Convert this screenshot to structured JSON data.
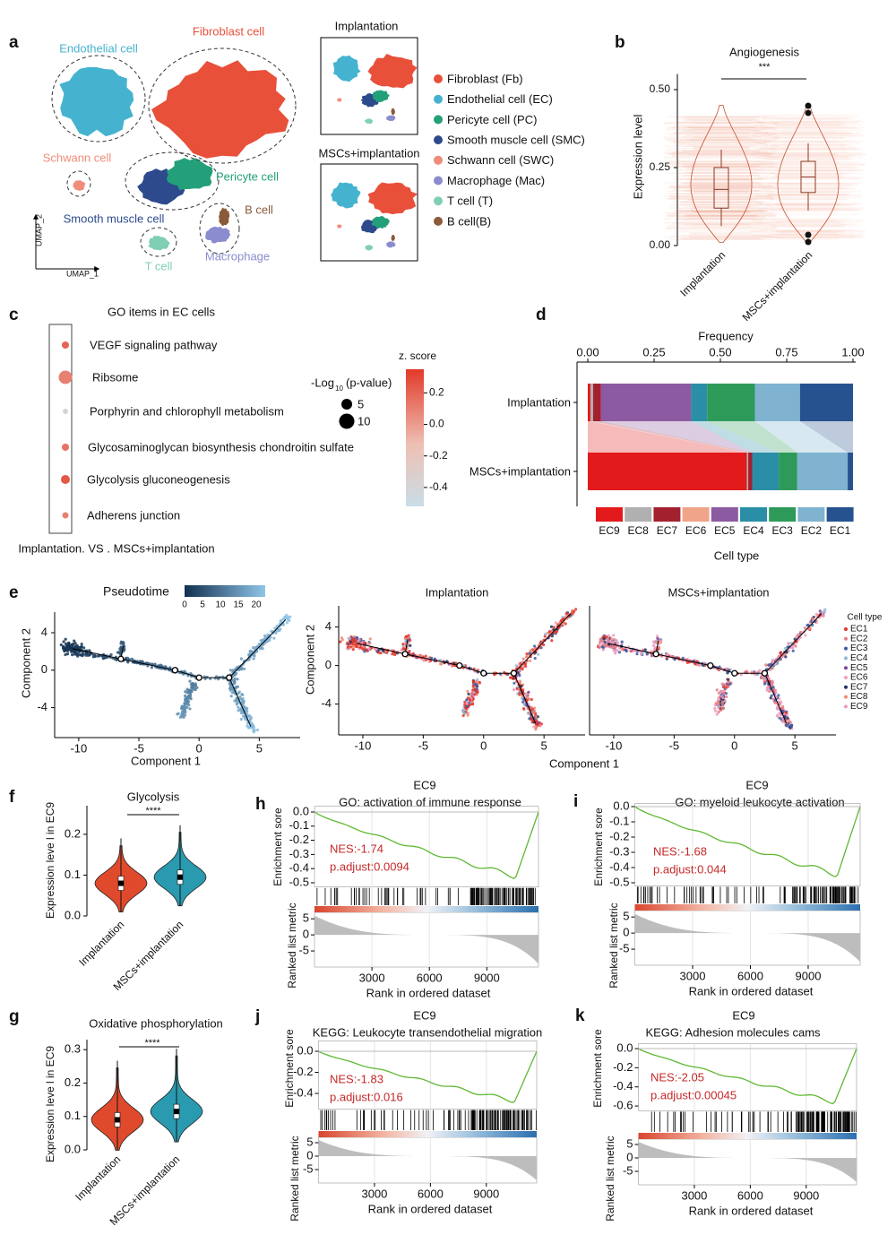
{
  "a": {
    "letter": "a",
    "clusters": [
      {
        "name": "Fibroblast cell",
        "color": "#e8503a"
      },
      {
        "name": "Endothelial cell",
        "color": "#45b3cf"
      },
      {
        "name": "Schwann cell",
        "color": "#ef8c7a"
      },
      {
        "name": "Pericyte cell",
        "color": "#23a07a"
      },
      {
        "name": "Smooth muscle cell",
        "color": "#2d4a8c"
      },
      {
        "name": "T cell",
        "color": "#7fcfb4"
      },
      {
        "name": "Macrophage",
        "color": "#8a8ccf"
      },
      {
        "name": "B cell",
        "color": "#8a5a3a"
      }
    ],
    "x_axis": "UMAP_1",
    "y_axis": "UMAP_2",
    "inset_titles": [
      "Implantation",
      "MSCs+implantation"
    ],
    "legend": [
      {
        "label": "Fibroblast  (Fb)",
        "color": "#e8503a"
      },
      {
        "label": "Endothelial cell (EC)",
        "color": "#45b3cf"
      },
      {
        "label": "Pericyte cell (PC)",
        "color": "#23a07a"
      },
      {
        "label": "Smooth muscle cell (SMC)",
        "color": "#2d4a8c"
      },
      {
        "label": "Schwann cell (SWC)",
        "color": "#ef8c7a"
      },
      {
        "label": "Macrophage (Mac)",
        "color": "#8a8ccf"
      },
      {
        "label": "T cell (T)",
        "color": "#7fcfb4"
      },
      {
        "label": "B cell(B)",
        "color": "#8a5a3a"
      }
    ]
  },
  "b": {
    "letter": "b",
    "title": "Angiogenesis",
    "significance": "***",
    "y_label": "Expression level",
    "categories": [
      "Implantation",
      "MSCs+implantation"
    ],
    "colors": [
      "#e8603a",
      "#f3a184"
    ],
    "ylim": [
      0,
      0.55
    ],
    "yticks": [
      {
        "value": 0,
        "label": "0.00"
      },
      {
        "value": 0.25,
        "label": "0.25"
      },
      {
        "value": 0.5,
        "label": "0.50"
      }
    ],
    "boxes": [
      {
        "q1": 0.12,
        "median": 0.18,
        "q3": 0.25
      },
      {
        "q1": 0.17,
        "median": 0.22,
        "q3": 0.27
      }
    ]
  },
  "c": {
    "letter": "c",
    "title": "GO items in EC cells",
    "items": [
      {
        "label": "VEGF signaling pathway",
        "neg_log10_p": 2.2,
        "z": 0.2
      },
      {
        "label": "Ribsome",
        "neg_log10_p": 7.7,
        "z": 0.1
      },
      {
        "label": "Porphyrin and chlorophyll metabolism",
        "neg_log10_p": 1.2,
        "z": -0.4
      },
      {
        "label": "Glycosaminoglycan biosynthesis chondroitin sulfate",
        "neg_log10_p": 2.2,
        "z": 0.15
      },
      {
        "label": "Glycolysis gluconeogenesis",
        "neg_log10_p": 3.4,
        "z": 0.25
      },
      {
        "label": "Adherens junction",
        "neg_log10_p": 1.7,
        "z": 0.1
      }
    ],
    "size_title": {
      "main": "-Log",
      "sub": "10",
      "tail": "(p-value)"
    },
    "size_legend": [
      5,
      10
    ],
    "color_title": "z. score",
    "clim": [
      -0.52,
      0.35
    ],
    "cticks": [
      0.2,
      {
        "value": 0,
        "label": "0.0"
      },
      -0.2,
      -0.4
    ],
    "footer": "Implantation. VS . MSCs+implantation"
  },
  "d": {
    "letter": "d",
    "x_label": "Frequency",
    "xlim": [
      0,
      1
    ],
    "xticks": [
      {
        "value": 0,
        "label": "0.00"
      },
      {
        "value": 0.25,
        "label": "0.25"
      },
      {
        "value": 0.5,
        "label": "0.50"
      },
      {
        "value": 0.75,
        "label": "0.75"
      },
      {
        "value": 1,
        "label": "1.00"
      }
    ],
    "rows": [
      "Implantation",
      "MSCs+implantation"
    ],
    "legend_title": "Cell type",
    "series": [
      {
        "name": "EC9",
        "color": "#e31a1c",
        "values": [
          0.01,
          0.6
        ]
      },
      {
        "name": "EC8",
        "color": "#b0b0b0",
        "values": [
          0.01,
          0.005
        ]
      },
      {
        "name": "EC7",
        "color": "#a3212f",
        "values": [
          0.03,
          0.015
        ]
      },
      {
        "name": "EC6",
        "color": "#f0a48a",
        "values": [
          0,
          0
        ]
      },
      {
        "name": "EC5",
        "color": "#8c5aa0",
        "values": [
          0.34,
          0
        ]
      },
      {
        "name": "EC4",
        "color": "#2a8fa6",
        "values": [
          0.06,
          0.1
        ]
      },
      {
        "name": "EC3",
        "color": "#2e9a5a",
        "values": [
          0.18,
          0.07
        ]
      },
      {
        "name": "EC2",
        "color": "#7fb3cf",
        "values": [
          0.17,
          0.19
        ]
      },
      {
        "name": "EC1",
        "color": "#26538f",
        "values": [
          0.2,
          0.02
        ]
      }
    ]
  },
  "e": {
    "letter": "e",
    "colorbar_title": "Pseudotime",
    "colorbar_ticks": [
      0,
      5,
      10,
      15,
      20
    ],
    "clim": [
      0,
      22.5
    ],
    "x_label": "Component 1",
    "y_label": "Component 2",
    "xlim": [
      -12,
      8.4
    ],
    "ylim": [
      -7.2,
      6.2
    ],
    "xticks": [
      -10,
      -5,
      0,
      5
    ],
    "yticks": [
      4,
      0,
      -4
    ],
    "titles": [
      "Implantation",
      "MSCs+implantation"
    ],
    "legend_title": "Cell type",
    "legend": [
      "EC1",
      "EC2",
      "EC3",
      "EC4",
      "EC5",
      "EC6",
      "EC7",
      "EC8",
      "EC9"
    ],
    "legend_colors": [
      "#e0362c",
      "#e87a8a",
      "#3a5ea8",
      "#8fb8d8",
      "#7b4a9a",
      "#f0a0b4",
      "#24325e",
      "#f08c74",
      "#e89ac0"
    ]
  },
  "f": {
    "letter": "f",
    "title": "Glycolysis",
    "significance": "****",
    "y_label": "Expression leve l in EC9",
    "categories": [
      "Implantation",
      "MSCs+implantation"
    ],
    "colors": [
      "#e04a2c",
      "#2a9ab0"
    ],
    "ylim": [
      0,
      0.27
    ],
    "yticks": [
      {
        "value": 0,
        "label": "0.0"
      },
      0.1,
      0.2
    ],
    "medians": [
      0.08,
      0.095
    ]
  },
  "g": {
    "letter": "g",
    "title": "Oxidative phosphorylation",
    "significance": "****",
    "y_label": "Expression leve l in EC9",
    "categories": [
      "Implantation",
      "MSCs+implantation"
    ],
    "colors": [
      "#e04a2c",
      "#2a9ab0"
    ],
    "ylim": [
      0,
      0.33
    ],
    "yticks": [
      {
        "value": 0,
        "label": "0.0"
      },
      0.1,
      0.2,
      0.3
    ],
    "medians": [
      0.09,
      0.115
    ]
  },
  "h": {
    "letter": "h",
    "cluster": "EC9",
    "title": "GO: activation of immune response",
    "nes": "NES:-1.74",
    "padj": "p.adjust:0.0094",
    "es_label": "Enrichment sore",
    "es_lim": [
      -0.53,
      0.04
    ],
    "es_ticks": [
      {
        "value": 0,
        "label": "0.0"
      },
      -0.1,
      -0.2,
      -0.3,
      -0.4,
      -0.5
    ],
    "metric_label": "Ranked list metric",
    "metric_lim": [
      -10,
      7
    ],
    "metric_ticks": [
      5,
      0,
      -5
    ],
    "x_label": "Rank in ordered dataset",
    "xlim": [
      0,
      11700
    ],
    "xticks": [
      3000,
      6000,
      9000
    ]
  },
  "i": {
    "letter": "i",
    "cluster": "EC9",
    "title": "GO: myeloid leukocyte activation",
    "nes": "NES:-1.68",
    "padj": "p.adjust:0.044",
    "es_label": "Enrichment sore",
    "es_lim": [
      -0.52,
      0.02
    ],
    "es_ticks": [
      {
        "value": 0,
        "label": "0.0"
      },
      -0.1,
      -0.2,
      -0.3,
      -0.4,
      -0.5
    ],
    "metric_label": "Ranked list metric",
    "metric_lim": [
      -10,
      7
    ],
    "metric_ticks": [
      5,
      0,
      -5
    ],
    "x_label": "Rank in ordered dataset",
    "xlim": [
      0,
      11700
    ],
    "xticks": [
      3000,
      6000,
      9000
    ]
  },
  "j": {
    "letter": "j",
    "cluster": "EC9",
    "title": "KEGG: Leukocyte transendothelial migration",
    "nes": "NES:-1.83",
    "padj": "p.adjust:0.016",
    "es_label": "Enrichment sore",
    "es_lim": [
      -0.55,
      0.1
    ],
    "es_ticks": [
      {
        "value": 0,
        "label": "0.0"
      },
      -0.2,
      -0.4
    ],
    "metric_label": "Ranked list metric",
    "metric_lim": [
      -10,
      7
    ],
    "metric_ticks": [
      5,
      0,
      -5
    ],
    "x_label": "Rank in ordered dataset",
    "xlim": [
      0,
      11700
    ],
    "xticks": [
      3000,
      6000,
      9000
    ]
  },
  "k": {
    "letter": "k",
    "cluster": "EC9",
    "title": "KEGG: Adhesion molecules cams",
    "nes": "NES:-2.05",
    "padj": "p.adjust:0.00045",
    "es_label": "Enrichment sore",
    "es_lim": [
      -0.65,
      0.05
    ],
    "es_ticks": [
      {
        "value": 0,
        "label": "0.0"
      },
      -0.2,
      -0.4,
      -0.6
    ],
    "metric_label": "Ranked list metric",
    "metric_lim": [
      -10,
      7
    ],
    "metric_ticks": [
      5,
      0,
      -5
    ],
    "x_label": "Rank in ordered dataset",
    "xlim": [
      0,
      11700
    ],
    "xticks": [
      3000,
      6000,
      9000
    ]
  }
}
